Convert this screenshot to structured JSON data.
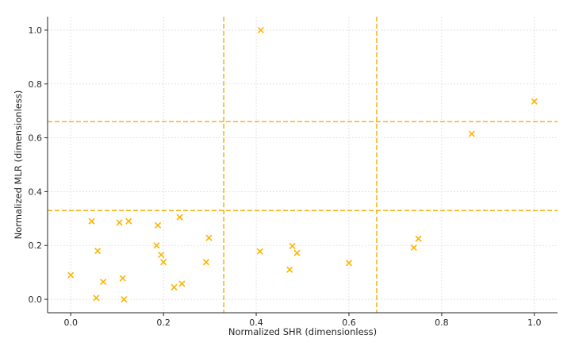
{
  "chart_data": {
    "type": "scatter",
    "title": "",
    "xlabel": "Normalized SHR (dimensionless)",
    "ylabel": "Normalized MLR (dimensionless)",
    "xlim": [
      -0.05,
      1.05
    ],
    "ylim": [
      -0.05,
      1.05
    ],
    "xticks": [
      0.0,
      0.2,
      0.4,
      0.6,
      0.8,
      1.0
    ],
    "yticks": [
      0.0,
      0.2,
      0.4,
      0.6,
      0.8,
      1.0
    ],
    "xtick_labels": [
      "0.0",
      "0.2",
      "0.4",
      "0.6",
      "0.8",
      "1.0"
    ],
    "ytick_labels": [
      "0.0",
      "0.2",
      "0.4",
      "0.6",
      "0.8",
      "1.0"
    ],
    "grid": true,
    "marker": "x",
    "marker_color": "#FFB300",
    "threshold_color": "#F5B41E",
    "vlines": [
      0.33,
      0.66
    ],
    "hlines": [
      0.33,
      0.66
    ],
    "points": [
      {
        "x": 0.0,
        "y": 0.09
      },
      {
        "x": 0.045,
        "y": 0.29
      },
      {
        "x": 0.055,
        "y": 0.005
      },
      {
        "x": 0.058,
        "y": 0.18
      },
      {
        "x": 0.07,
        "y": 0.065
      },
      {
        "x": 0.105,
        "y": 0.285
      },
      {
        "x": 0.112,
        "y": 0.078
      },
      {
        "x": 0.115,
        "y": 0.0
      },
      {
        "x": 0.125,
        "y": 0.29
      },
      {
        "x": 0.185,
        "y": 0.2
      },
      {
        "x": 0.188,
        "y": 0.275
      },
      {
        "x": 0.195,
        "y": 0.165
      },
      {
        "x": 0.2,
        "y": 0.138
      },
      {
        "x": 0.223,
        "y": 0.045
      },
      {
        "x": 0.235,
        "y": 0.305
      },
      {
        "x": 0.24,
        "y": 0.058
      },
      {
        "x": 0.292,
        "y": 0.138
      },
      {
        "x": 0.298,
        "y": 0.228
      },
      {
        "x": 0.408,
        "y": 0.178
      },
      {
        "x": 0.41,
        "y": 1.0
      },
      {
        "x": 0.472,
        "y": 0.11
      },
      {
        "x": 0.478,
        "y": 0.198
      },
      {
        "x": 0.488,
        "y": 0.172
      },
      {
        "x": 0.6,
        "y": 0.135
      },
      {
        "x": 0.74,
        "y": 0.192
      },
      {
        "x": 0.75,
        "y": 0.225
      },
      {
        "x": 0.865,
        "y": 0.615
      },
      {
        "x": 1.0,
        "y": 0.735
      }
    ]
  }
}
